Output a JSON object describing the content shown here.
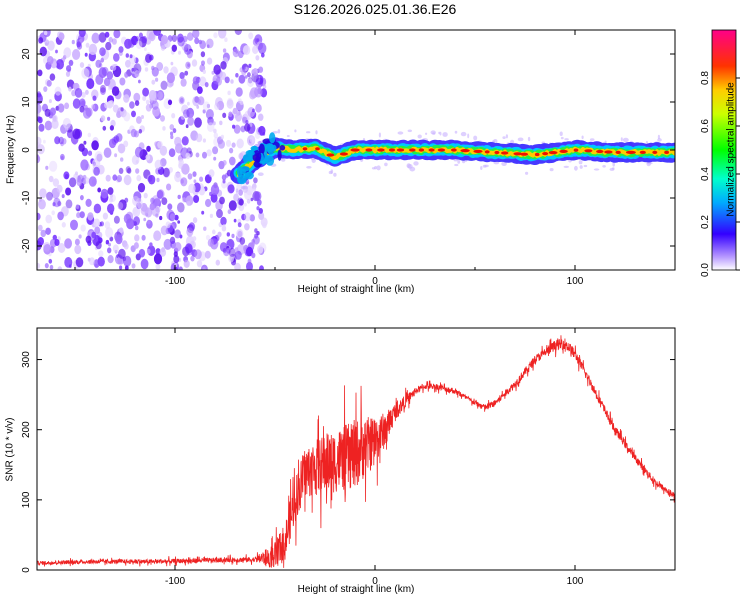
{
  "title": "S126.2026.025.01.36.E26",
  "chart_data": [
    {
      "type": "heatmap",
      "name": "spectrogram",
      "xlabel": "Height of straight line (km)",
      "ylabel": "Frequency (Hz)",
      "xlim": [
        -169,
        150
      ],
      "ylim": [
        -25,
        25
      ],
      "xticks": [
        -100,
        0,
        100
      ],
      "yticks": [
        -20,
        -10,
        0,
        10,
        20
      ],
      "colorbar": {
        "label": "Normalized spectral amplitude",
        "range": [
          0,
          1
        ],
        "ticks": [
          "0.0",
          "0.2",
          "0.4",
          "0.6",
          "0.8"
        ]
      },
      "noise_region_end_km": -55,
      "signal_start_km": -68,
      "signal_centerline": [
        {
          "x": -68,
          "y": -5
        },
        {
          "x": -60,
          "y": -2
        },
        {
          "x": -50,
          "y": 0.5
        },
        {
          "x": -40,
          "y": 0
        },
        {
          "x": -30,
          "y": 0.5
        },
        {
          "x": -20,
          "y": -1.5
        },
        {
          "x": -10,
          "y": 0
        },
        {
          "x": 0,
          "y": 0
        },
        {
          "x": 20,
          "y": 0
        },
        {
          "x": 40,
          "y": 0
        },
        {
          "x": 60,
          "y": -0.5
        },
        {
          "x": 80,
          "y": -1
        },
        {
          "x": 100,
          "y": 0
        },
        {
          "x": 120,
          "y": -0.5
        },
        {
          "x": 150,
          "y": -0.5
        }
      ]
    },
    {
      "type": "line",
      "name": "snr",
      "xlabel": "Height of straight line (km)",
      "ylabel": "SNR (10 * v/v)",
      "xlim": [
        -169,
        150
      ],
      "ylim": [
        0,
        345
      ],
      "xticks": [
        -100,
        0,
        100
      ],
      "yticks": [
        0,
        100,
        200,
        300
      ],
      "color": "#ee2222",
      "series": [
        {
          "name": "SNR",
          "x": [
            -169,
            -140,
            -110,
            -80,
            -60,
            -50,
            -45,
            -40,
            -35,
            -30,
            -25,
            -20,
            -15,
            -10,
            -5,
            0,
            5,
            10,
            15,
            20,
            25,
            30,
            40,
            50,
            55,
            60,
            70,
            80,
            90,
            95,
            100,
            110,
            120,
            130,
            140,
            150
          ],
          "y": [
            10,
            12,
            12,
            14,
            15,
            20,
            40,
            100,
            140,
            145,
            150,
            155,
            160,
            165,
            175,
            185,
            200,
            225,
            240,
            255,
            262,
            262,
            255,
            238,
            232,
            238,
            265,
            300,
            320,
            323,
            308,
            255,
            200,
            160,
            125,
            105
          ]
        }
      ],
      "noise_amplitude": [
        {
          "x": -169,
          "amp": 6
        },
        {
          "x": -60,
          "amp": 8
        },
        {
          "x": -45,
          "amp": 60
        },
        {
          "x": -30,
          "amp": 90
        },
        {
          "x": -10,
          "amp": 110
        },
        {
          "x": 0,
          "amp": 80
        },
        {
          "x": 10,
          "amp": 30
        },
        {
          "x": 20,
          "amp": 10
        },
        {
          "x": 50,
          "amp": 8
        },
        {
          "x": 80,
          "amp": 14
        },
        {
          "x": 95,
          "amp": 18
        },
        {
          "x": 110,
          "amp": 14
        },
        {
          "x": 150,
          "amp": 10
        }
      ]
    }
  ]
}
